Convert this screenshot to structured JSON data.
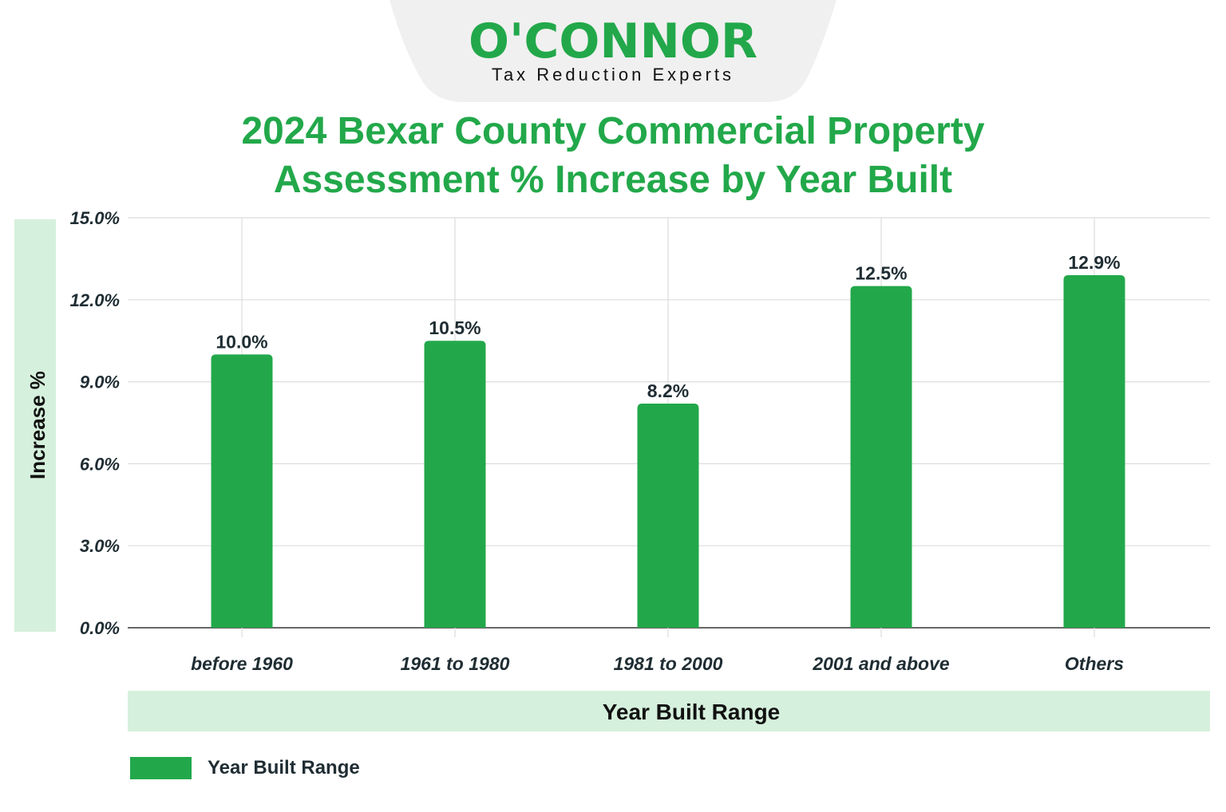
{
  "logo": {
    "brand": "O'CONNOR",
    "tagline": "Tax Reduction Experts"
  },
  "colors": {
    "bar": "#22a84a",
    "title": "#22a84a",
    "band": "#d5f0dc",
    "text": "#1f2d33",
    "grid": "#dddddd"
  },
  "chart_data": {
    "type": "bar",
    "title_line1": "2024 Bexar County Commercial Property",
    "title_line2": "Assessment % Increase by Year Built",
    "categories": [
      "before 1960",
      "1961 to 1980",
      "1981 to 2000",
      "2001 and above",
      "Others"
    ],
    "series": [
      {
        "name": "Year Built Range",
        "values": [
          10.0,
          10.5,
          8.2,
          12.5,
          12.9
        ]
      }
    ],
    "data_labels": [
      "10.0%",
      "10.5%",
      "8.2%",
      "12.5%",
      "12.9%"
    ],
    "xlabel": "Year Built Range",
    "ylabel": "Increase %",
    "ylim": [
      0,
      15
    ],
    "yticks": [
      "0.0%",
      "3.0%",
      "6.0%",
      "9.0%",
      "12.0%",
      "15.0%"
    ],
    "ytick_values": [
      0,
      3,
      6,
      9,
      12,
      15
    ],
    "grid": true,
    "legend": {
      "position": "bottom-left",
      "label": "Year Built Range"
    }
  }
}
